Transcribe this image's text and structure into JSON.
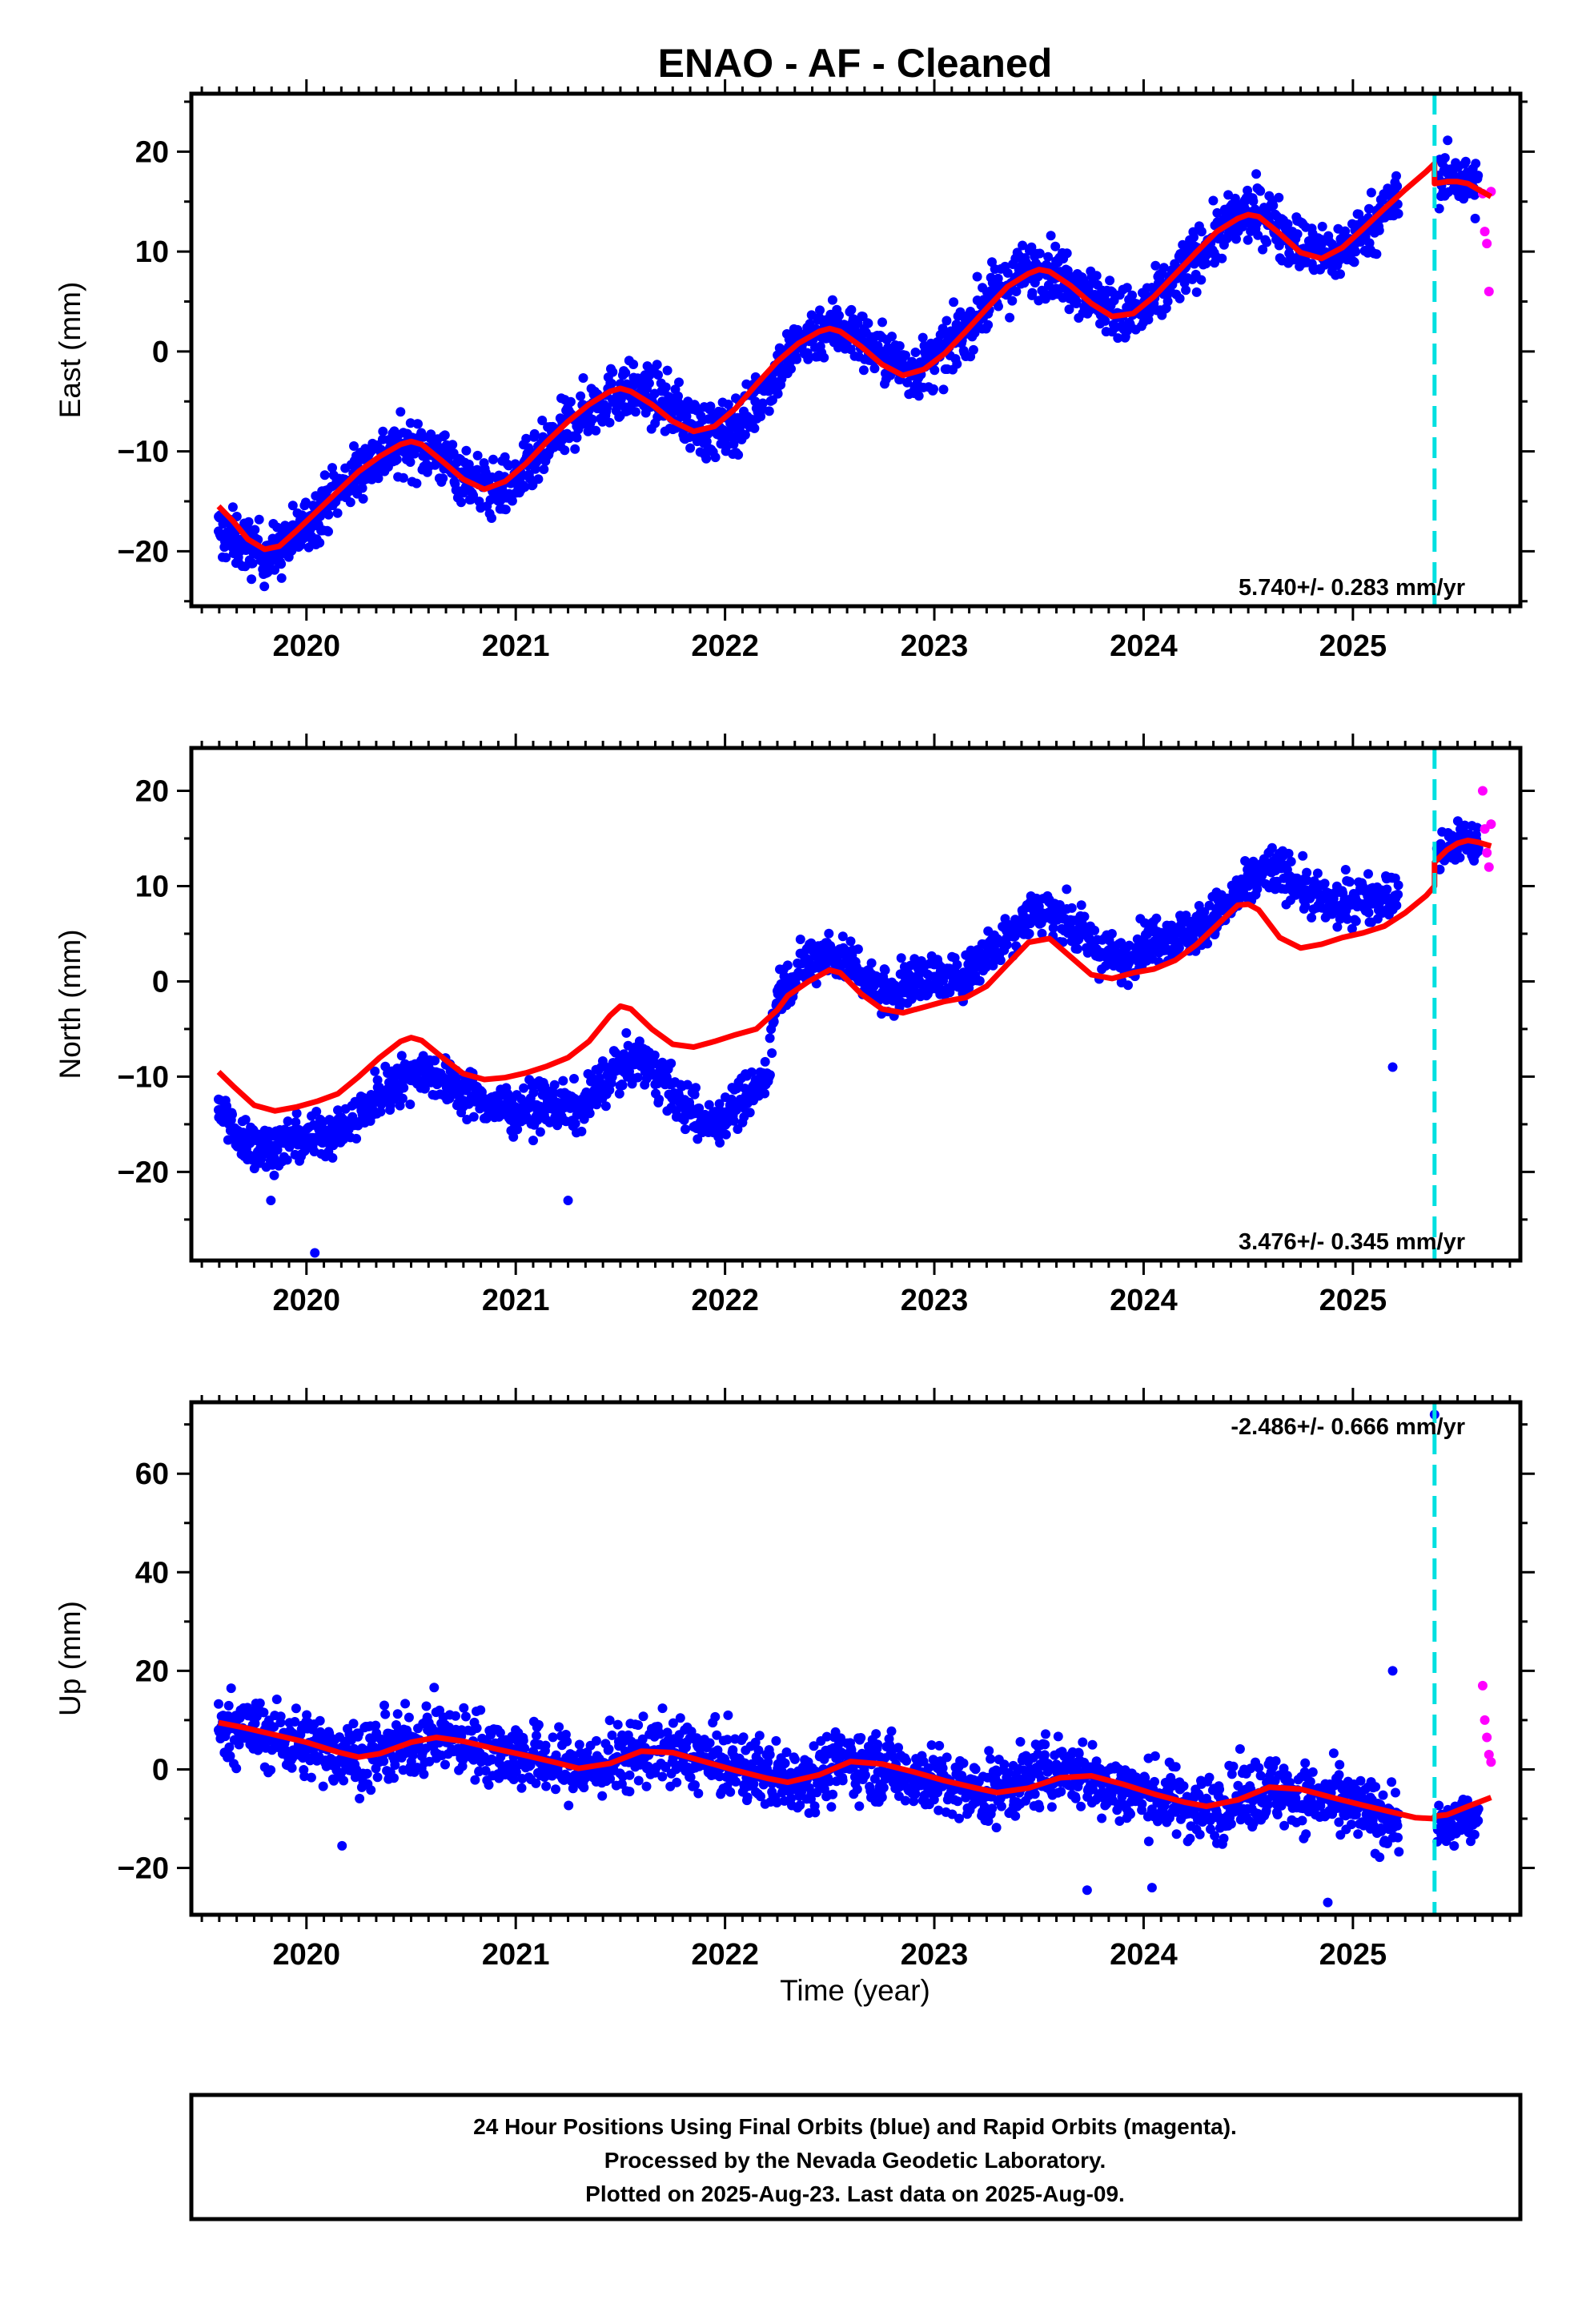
{
  "title": "ENAO  - AF - Cleaned",
  "xlabel": "Time (year)",
  "footer": {
    "line1": "24 Hour Positions Using Final Orbits (blue) and Rapid Orbits (magenta).",
    "line2": "Processed by the Nevada Geodetic Laboratory.",
    "line3": "Plotted on 2025-Aug-23. Last data on 2025-Aug-09."
  },
  "colors": {
    "final": "#0000ff",
    "rapid": "#ff00ff",
    "model": "#ff0000",
    "step": "#00e0e0",
    "axis": "#000000"
  },
  "chart_data": [
    {
      "type": "scatter",
      "ylabel": "East (mm)",
      "annotation": "5.740+/- 0.283 mm/yr",
      "xlim": [
        2019.45,
        2025.8
      ],
      "ylim": [
        -25.5,
        25.8
      ],
      "xticks": [
        2020,
        2021,
        2022,
        2023,
        2024,
        2025
      ],
      "yticks": [
        -20,
        -10,
        0,
        10,
        20
      ],
      "grid": false,
      "step_line_x": 2025.39,
      "series": [
        {
          "kind": "final",
          "x": [
            2019.58,
            2019.62,
            2019.67,
            2019.72,
            2019.77,
            2019.82,
            2019.87,
            2019.92,
            2019.97,
            2020.02,
            2020.1,
            2020.2,
            2020.3,
            2020.4,
            2020.5,
            2020.6,
            2020.7,
            2020.8,
            2020.9,
            2021.0,
            2021.1,
            2021.2,
            2021.3,
            2021.4,
            2021.5,
            2021.6,
            2021.7,
            2021.8,
            2021.9,
            2022.0,
            2022.1,
            2022.2,
            2022.3,
            2022.4,
            2022.5,
            2022.6,
            2022.7,
            2022.8,
            2022.9,
            2023.0,
            2023.1,
            2023.2,
            2023.3,
            2023.4,
            2023.5,
            2023.6,
            2023.7,
            2023.8,
            2023.9,
            2024.0,
            2024.1,
            2024.2,
            2024.3,
            2024.4,
            2024.5,
            2024.6,
            2024.7,
            2024.8,
            2024.9,
            2025.0,
            2025.1,
            2025.19,
            2025.42,
            2025.47,
            2025.52,
            2025.57,
            2025.6
          ],
          "y": [
            -18,
            -18.5,
            -19,
            -19.5,
            -20,
            -20.5,
            -20,
            -19,
            -18,
            -17,
            -15,
            -13,
            -11,
            -10,
            -9.5,
            -10,
            -11.5,
            -13,
            -14,
            -13,
            -11,
            -8.5,
            -6.5,
            -5,
            -4,
            -4,
            -5,
            -6.5,
            -8,
            -8,
            -6.5,
            -3.5,
            -0.5,
            1.5,
            2.5,
            2,
            0.5,
            -1,
            -2,
            -1,
            1,
            3.5,
            6,
            7.5,
            8.5,
            8,
            6.5,
            5,
            3.5,
            4,
            6,
            8.5,
            10.5,
            12.5,
            14,
            13.5,
            11.5,
            10,
            9.5,
            11,
            13,
            15,
            17,
            17.5,
            17,
            16.5,
            16
          ]
        },
        {
          "kind": "rapid",
          "x": [
            2025.62,
            2025.63,
            2025.64,
            2025.65,
            2025.66
          ],
          "y": [
            15.8,
            12,
            10.8,
            6,
            16
          ]
        },
        {
          "kind": "model",
          "x": [
            2019.58,
            2019.65,
            2019.72,
            2019.8,
            2019.87,
            2019.95,
            2020.05,
            2020.15,
            2020.25,
            2020.35,
            2020.45,
            2020.5,
            2020.55,
            2020.65,
            2020.75,
            2020.85,
            2020.95,
            2021.05,
            2021.15,
            2021.25,
            2021.35,
            2021.45,
            2021.5,
            2021.55,
            2021.65,
            2021.75,
            2021.85,
            2021.95,
            2022.05,
            2022.15,
            2022.25,
            2022.35,
            2022.45,
            2022.5,
            2022.55,
            2022.65,
            2022.75,
            2022.85,
            2022.95,
            2023.05,
            2023.15,
            2023.25,
            2023.35,
            2023.45,
            2023.5,
            2023.55,
            2023.65,
            2023.75,
            2023.85,
            2023.95,
            2024.05,
            2024.15,
            2024.25,
            2024.35,
            2024.45,
            2024.5,
            2024.55,
            2024.65,
            2024.75,
            2024.85,
            2024.95,
            2025.05,
            2025.15,
            2025.25,
            2025.35,
            2025.39,
            2025.39,
            2025.45,
            2025.5,
            2025.55,
            2025.6,
            2025.66
          ],
          "y": [
            -15.5,
            -17,
            -18.8,
            -19.8,
            -19.5,
            -18,
            -16,
            -14,
            -12,
            -10.5,
            -9.3,
            -9,
            -9.3,
            -11,
            -12.8,
            -13.8,
            -13,
            -11.2,
            -9,
            -7,
            -5.3,
            -4,
            -3.7,
            -4,
            -5.3,
            -7,
            -8,
            -7.5,
            -5.7,
            -3.3,
            -1,
            0.8,
            2,
            2.3,
            2,
            0.5,
            -1.3,
            -2.4,
            -1.8,
            -0.2,
            2,
            4.3,
            6.5,
            7.8,
            8.2,
            8,
            6.6,
            4.8,
            3.5,
            3.8,
            5.5,
            7.7,
            9.9,
            12,
            13.3,
            13.7,
            13.5,
            11.8,
            9.9,
            9.3,
            10.4,
            12.3,
            14.3,
            16.2,
            18,
            18.8,
            16.8,
            17,
            17,
            16.8,
            16.2,
            15.5
          ]
        }
      ]
    },
    {
      "type": "scatter",
      "ylabel": "North (mm)",
      "annotation": "3.476+/- 0.345 mm/yr",
      "xlim": [
        2019.45,
        2025.8
      ],
      "ylim": [
        -29.3,
        24.5
      ],
      "xticks": [
        2020,
        2021,
        2022,
        2023,
        2024,
        2025
      ],
      "yticks": [
        -20,
        -10,
        0,
        10,
        20
      ],
      "grid": false,
      "step_line_x": 2025.39,
      "series": [
        {
          "kind": "final",
          "x": [
            2019.58,
            2019.63,
            2019.68,
            2019.73,
            2019.78,
            2019.83,
            2019.9,
            2020.0,
            2020.1,
            2020.2,
            2020.3,
            2020.4,
            2020.5,
            2020.6,
            2020.7,
            2020.8,
            2020.9,
            2021.0,
            2021.1,
            2021.2,
            2021.3,
            2021.4,
            2021.5,
            2021.6,
            2021.7,
            2021.8,
            2021.9,
            2022.0,
            2022.1,
            2022.2,
            2022.25,
            2022.3,
            2022.4,
            2022.5,
            2022.6,
            2022.7,
            2022.8,
            2022.9,
            2023.0,
            2023.1,
            2023.2,
            2023.3,
            2023.4,
            2023.5,
            2023.6,
            2023.7,
            2023.8,
            2023.9,
            2024.0,
            2024.1,
            2024.2,
            2024.3,
            2024.4,
            2024.5,
            2024.6,
            2024.7,
            2024.8,
            2024.9,
            2025.0,
            2025.1,
            2025.2,
            2025.41,
            2025.46,
            2025.51,
            2025.56,
            2025.6,
            2019.83,
            2020.04,
            2021.25,
            2025.19
          ],
          "y": [
            -13.5,
            -15,
            -16,
            -17,
            -17.5,
            -17.5,
            -17,
            -16.5,
            -16,
            -15,
            -13,
            -11,
            -9.5,
            -9.5,
            -11,
            -12,
            -13,
            -13.5,
            -13,
            -13,
            -13.5,
            -11,
            -9,
            -8.5,
            -10,
            -13,
            -15,
            -14,
            -12,
            -10,
            -1,
            0,
            2,
            3,
            2,
            0,
            -1,
            0,
            0.5,
            0,
            2,
            4,
            6,
            7.5,
            7,
            5,
            3,
            2,
            4,
            5,
            5,
            6,
            8,
            10,
            12,
            11,
            9,
            8,
            8.5,
            9,
            9,
            13,
            14,
            15,
            15,
            14,
            -23,
            -28.5,
            -23,
            -9
          ],
          "x_extra_note": ""
        },
        {
          "kind": "rapid",
          "x": [
            2025.62,
            2025.63,
            2025.64,
            2025.65,
            2025.66
          ],
          "y": [
            20,
            16,
            13.5,
            12,
            16.5
          ]
        },
        {
          "kind": "model",
          "x": [
            2019.58,
            2019.65,
            2019.75,
            2019.85,
            2019.95,
            2020.05,
            2020.15,
            2020.25,
            2020.35,
            2020.45,
            2020.5,
            2020.55,
            2020.65,
            2020.75,
            2020.85,
            2020.95,
            2021.05,
            2021.15,
            2021.25,
            2021.35,
            2021.45,
            2021.5,
            2021.55,
            2021.65,
            2021.75,
            2021.85,
            2021.95,
            2022.05,
            2022.15,
            2022.25,
            2022.3,
            2022.4,
            2022.5,
            2022.55,
            2022.65,
            2022.75,
            2022.85,
            2022.95,
            2023.05,
            2023.15,
            2023.25,
            2023.35,
            2023.45,
            2023.55,
            2023.65,
            2023.75,
            2023.85,
            2023.95,
            2024.05,
            2024.15,
            2024.25,
            2024.35,
            2024.45,
            2024.5,
            2024.55,
            2024.65,
            2024.75,
            2024.85,
            2024.95,
            2025.05,
            2025.15,
            2025.25,
            2025.35,
            2025.39,
            2025.39,
            2025.45,
            2025.5,
            2025.55,
            2025.6,
            2025.66
          ],
          "y": [
            -9.5,
            -11,
            -13,
            -13.6,
            -13.2,
            -12.6,
            -11.8,
            -10,
            -8,
            -6.3,
            -5.9,
            -6.2,
            -8,
            -9.7,
            -10.3,
            -10.1,
            -9.6,
            -8.9,
            -8,
            -6.3,
            -3.6,
            -2.6,
            -2.9,
            -5,
            -6.6,
            -6.9,
            -6.3,
            -5.6,
            -5,
            -3,
            -1.5,
            0,
            1.2,
            0.9,
            -1.3,
            -2.9,
            -3.3,
            -2.7,
            -2.1,
            -1.7,
            -0.5,
            1.8,
            4.1,
            4.5,
            2.6,
            0.7,
            0.3,
            0.9,
            1.3,
            2.2,
            3.8,
            5.9,
            8,
            8.1,
            7.5,
            4.6,
            3.5,
            3.9,
            4.6,
            5.1,
            5.8,
            7.2,
            9,
            10,
            12.5,
            13.8,
            14.5,
            14.8,
            14.6,
            14.2
          ]
        }
      ]
    },
    {
      "type": "scatter",
      "ylabel": "Up (mm)",
      "annotation": "-2.486+/- 0.666 mm/yr",
      "xlim": [
        2019.45,
        2025.8
      ],
      "ylim": [
        -29.5,
        74.5
      ],
      "xticks": [
        2020,
        2021,
        2022,
        2023,
        2024,
        2025
      ],
      "yticks": [
        -20,
        0,
        20,
        40,
        60
      ],
      "grid": false,
      "step_line_x": 2025.39,
      "series": [
        {
          "kind": "final",
          "x": [
            2019.58,
            2019.65,
            2019.72,
            2019.8,
            2019.9,
            2020.0,
            2020.1,
            2020.2,
            2020.3,
            2020.4,
            2020.5,
            2020.6,
            2020.7,
            2020.8,
            2020.9,
            2021.0,
            2021.1,
            2021.2,
            2021.3,
            2021.4,
            2021.5,
            2021.6,
            2021.7,
            2021.8,
            2021.9,
            2022.0,
            2022.1,
            2022.2,
            2022.3,
            2022.4,
            2022.5,
            2022.6,
            2022.7,
            2022.8,
            2022.9,
            2023.0,
            2023.1,
            2023.2,
            2023.3,
            2023.4,
            2023.5,
            2023.6,
            2023.7,
            2023.8,
            2023.9,
            2024.0,
            2024.1,
            2024.2,
            2024.3,
            2024.4,
            2024.5,
            2024.6,
            2024.7,
            2024.8,
            2024.9,
            2025.0,
            2025.1,
            2025.2,
            2025.42,
            2025.47,
            2025.52,
            2025.56,
            2025.6,
            2025.39,
            2025.19,
            2020.17,
            2023.73,
            2024.04,
            2024.88
          ],
          "y": [
            8,
            9,
            8,
            7,
            6,
            5,
            4,
            3,
            3,
            4,
            5,
            7,
            6,
            5,
            4,
            3,
            2,
            1,
            0,
            1,
            2,
            4,
            4,
            3,
            2,
            1,
            0,
            -1,
            -2,
            -1,
            0,
            2,
            1,
            0,
            -1,
            -2,
            -4,
            -5,
            -4,
            -3,
            -1,
            0,
            -1,
            -3,
            -4,
            -5,
            -6,
            -7,
            -8,
            -7,
            -5,
            -4,
            -5,
            -6,
            -7,
            -8,
            -9,
            -10,
            -12,
            -11,
            -10,
            -9,
            -8,
            72,
            20,
            -15.5,
            -24.5,
            -24,
            -27
          ],
          "x_extra_note": ""
        },
        {
          "kind": "rapid",
          "x": [
            2025.62,
            2025.63,
            2025.64,
            2025.65,
            2025.66
          ],
          "y": [
            17,
            10,
            6.5,
            3,
            1.5
          ]
        },
        {
          "kind": "model",
          "x": [
            2019.58,
            2019.7,
            2019.85,
            2020.0,
            2020.15,
            2020.25,
            2020.35,
            2020.5,
            2020.62,
            2020.75,
            2020.9,
            2021.05,
            2021.2,
            2021.3,
            2021.45,
            2021.6,
            2021.75,
            2021.9,
            2022.05,
            2022.2,
            2022.3,
            2022.45,
            2022.6,
            2022.75,
            2022.9,
            2023.05,
            2023.2,
            2023.3,
            2023.45,
            2023.6,
            2023.75,
            2023.9,
            2024.05,
            2024.2,
            2024.3,
            2024.45,
            2024.6,
            2024.75,
            2024.9,
            2025.05,
            2025.2,
            2025.3,
            2025.39,
            2025.39,
            2025.45,
            2025.55,
            2025.66
          ],
          "y": [
            9.5,
            8.5,
            7,
            5.5,
            3.5,
            2.5,
            3.2,
            5.5,
            6.5,
            5.7,
            4.2,
            2.8,
            1.3,
            0.2,
            1.2,
            3.7,
            3.4,
            1.6,
            -0.2,
            -1.8,
            -2.6,
            -1.1,
            1.6,
            1.1,
            -0.5,
            -2.3,
            -3.8,
            -4.7,
            -3.8,
            -1.7,
            -1.3,
            -3,
            -5,
            -6.7,
            -7.5,
            -6.2,
            -3.6,
            -4,
            -5.7,
            -7.3,
            -8.8,
            -9.8,
            -10,
            -9.5,
            -9.2,
            -7.5,
            -5.7
          ]
        }
      ]
    }
  ]
}
